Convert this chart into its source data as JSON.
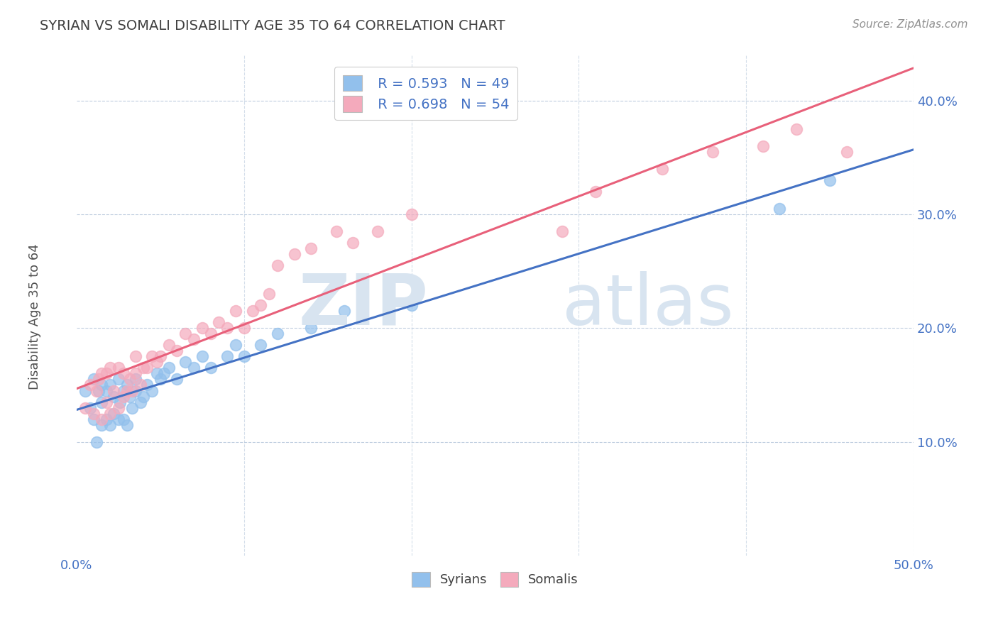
{
  "title": "SYRIAN VS SOMALI DISABILITY AGE 35 TO 64 CORRELATION CHART",
  "source": "Source: ZipAtlas.com",
  "ylabel": "Disability Age 35 to 64",
  "xlim": [
    0.0,
    0.5
  ],
  "ylim": [
    0.0,
    0.44
  ],
  "syrian_color": "#92C0EC",
  "somali_color": "#F4AABC",
  "syrian_line_color": "#4472C4",
  "somali_line_color": "#E8607A",
  "legend_text_color": "#4472C4",
  "title_color": "#404040",
  "watermark_color": "#D8E4F0",
  "background_color": "#FFFFFF",
  "r_syrian": 0.593,
  "n_syrian": 49,
  "r_somali": 0.698,
  "n_somali": 54,
  "syrian_x": [
    0.005,
    0.008,
    0.01,
    0.01,
    0.012,
    0.013,
    0.015,
    0.015,
    0.015,
    0.018,
    0.018,
    0.02,
    0.02,
    0.022,
    0.022,
    0.025,
    0.025,
    0.026,
    0.028,
    0.028,
    0.03,
    0.03,
    0.032,
    0.033,
    0.035,
    0.035,
    0.038,
    0.04,
    0.042,
    0.045,
    0.048,
    0.05,
    0.052,
    0.055,
    0.06,
    0.065,
    0.07,
    0.075,
    0.08,
    0.09,
    0.095,
    0.1,
    0.11,
    0.12,
    0.14,
    0.16,
    0.2,
    0.42,
    0.45
  ],
  "syrian_y": [
    0.145,
    0.13,
    0.12,
    0.155,
    0.1,
    0.145,
    0.115,
    0.135,
    0.15,
    0.12,
    0.145,
    0.115,
    0.15,
    0.125,
    0.14,
    0.12,
    0.155,
    0.135,
    0.12,
    0.145,
    0.115,
    0.15,
    0.14,
    0.13,
    0.155,
    0.145,
    0.135,
    0.14,
    0.15,
    0.145,
    0.16,
    0.155,
    0.16,
    0.165,
    0.155,
    0.17,
    0.165,
    0.175,
    0.165,
    0.175,
    0.185,
    0.175,
    0.185,
    0.195,
    0.2,
    0.215,
    0.22,
    0.305,
    0.33
  ],
  "somali_x": [
    0.005,
    0.008,
    0.01,
    0.012,
    0.013,
    0.015,
    0.015,
    0.018,
    0.018,
    0.02,
    0.02,
    0.022,
    0.025,
    0.025,
    0.028,
    0.028,
    0.03,
    0.032,
    0.033,
    0.035,
    0.035,
    0.038,
    0.04,
    0.042,
    0.045,
    0.048,
    0.05,
    0.055,
    0.06,
    0.065,
    0.07,
    0.075,
    0.08,
    0.085,
    0.09,
    0.095,
    0.1,
    0.105,
    0.11,
    0.115,
    0.12,
    0.13,
    0.14,
    0.155,
    0.165,
    0.18,
    0.2,
    0.29,
    0.31,
    0.35,
    0.38,
    0.41,
    0.43,
    0.46
  ],
  "somali_y": [
    0.13,
    0.15,
    0.125,
    0.145,
    0.155,
    0.12,
    0.16,
    0.135,
    0.16,
    0.125,
    0.165,
    0.145,
    0.13,
    0.165,
    0.14,
    0.16,
    0.145,
    0.155,
    0.145,
    0.16,
    0.175,
    0.15,
    0.165,
    0.165,
    0.175,
    0.17,
    0.175,
    0.185,
    0.18,
    0.195,
    0.19,
    0.2,
    0.195,
    0.205,
    0.2,
    0.215,
    0.2,
    0.215,
    0.22,
    0.23,
    0.255,
    0.265,
    0.27,
    0.285,
    0.275,
    0.285,
    0.3,
    0.285,
    0.32,
    0.34,
    0.355,
    0.36,
    0.375,
    0.355
  ]
}
